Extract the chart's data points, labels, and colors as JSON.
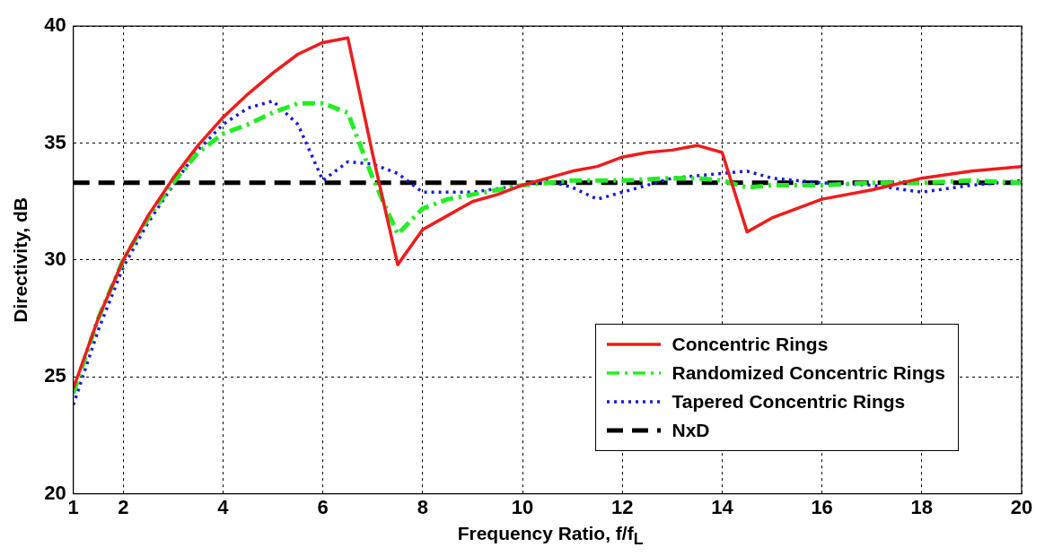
{
  "chart_data": {
    "type": "line",
    "xlabel": "Frequency Ratio, f/f$_{L}$",
    "ylabel": "Directivity, dB",
    "xlim": [
      1,
      20
    ],
    "xticks": [
      1,
      2,
      4,
      6,
      8,
      10,
      12,
      14,
      16,
      18,
      20
    ],
    "ylim": [
      20,
      40
    ],
    "yticks": [
      20,
      25,
      30,
      35,
      40
    ],
    "grid": true,
    "legend": "bottom right",
    "marker": "none",
    "series": [
      {
        "name": "Concentric Rings",
        "color": "#ee1c1c",
        "line_style": "solid",
        "x": [
          1,
          1.5,
          2,
          2.5,
          3,
          3.5,
          4,
          4.5,
          5,
          5.5,
          6,
          6.5,
          7,
          7.5,
          8,
          8.5,
          9,
          9.5,
          10,
          10.5,
          11,
          11.5,
          12,
          12.5,
          13,
          13.5,
          14,
          14.5,
          15,
          16,
          17,
          18,
          19,
          20
        ],
        "values": [
          24.5,
          27.5,
          30,
          31.9,
          33.5,
          34.9,
          36.1,
          37.1,
          38,
          38.8,
          39.3,
          39.5,
          34.5,
          29.8,
          31.3,
          31.9,
          32.5,
          32.8,
          33.2,
          33.5,
          33.8,
          34,
          34.4,
          34.6,
          34.7,
          34.9,
          34.6,
          31.2,
          31.8,
          32.6,
          33,
          33.5,
          33.8,
          34
        ]
      },
      {
        "name": "Randomized Concentric Rings",
        "color": "#22ee22",
        "line_style": "dashdot",
        "x": [
          1,
          1.5,
          2,
          2.5,
          3,
          3.5,
          4,
          4.5,
          5,
          5.5,
          6,
          6.5,
          7,
          7.5,
          8,
          8.5,
          9,
          9.5,
          10,
          11,
          12,
          13,
          13.5,
          14,
          14.5,
          15,
          16,
          17,
          18,
          19,
          20
        ],
        "values": [
          24.3,
          27.5,
          30,
          31.8,
          33.3,
          34.6,
          35.4,
          35.8,
          36.3,
          36.7,
          36.7,
          36.3,
          33.5,
          31.1,
          32.2,
          32.6,
          32.8,
          33,
          33.2,
          33.4,
          33.4,
          33.5,
          33.5,
          33.4,
          33.1,
          33.2,
          33.2,
          33.3,
          33.3,
          33.4,
          33.3
        ]
      },
      {
        "name": "Tapered Concentric Rings",
        "color": "#1a1adb",
        "line_style": "dotted",
        "x": [
          1,
          1.5,
          2,
          2.5,
          3,
          3.5,
          4,
          4.5,
          5,
          5.5,
          6,
          6.5,
          7,
          7.5,
          8,
          9,
          10,
          10.5,
          11,
          11.5,
          12,
          13,
          14,
          14.5,
          15,
          16,
          17,
          18,
          19,
          20
        ],
        "values": [
          23.8,
          27,
          29.7,
          31.6,
          33.2,
          34.7,
          35.8,
          36.5,
          36.8,
          35.8,
          33.4,
          34.2,
          34.1,
          33.7,
          32.9,
          32.9,
          33.2,
          33.4,
          33.1,
          32.6,
          32.9,
          33.5,
          33.7,
          33.8,
          33.5,
          33.3,
          33.2,
          32.9,
          33.2,
          33.4
        ]
      },
      {
        "name": "NxD",
        "color": "#000000",
        "line_style": "dashed",
        "x": [
          1,
          20
        ],
        "values": [
          33.3,
          33.3
        ]
      }
    ]
  }
}
